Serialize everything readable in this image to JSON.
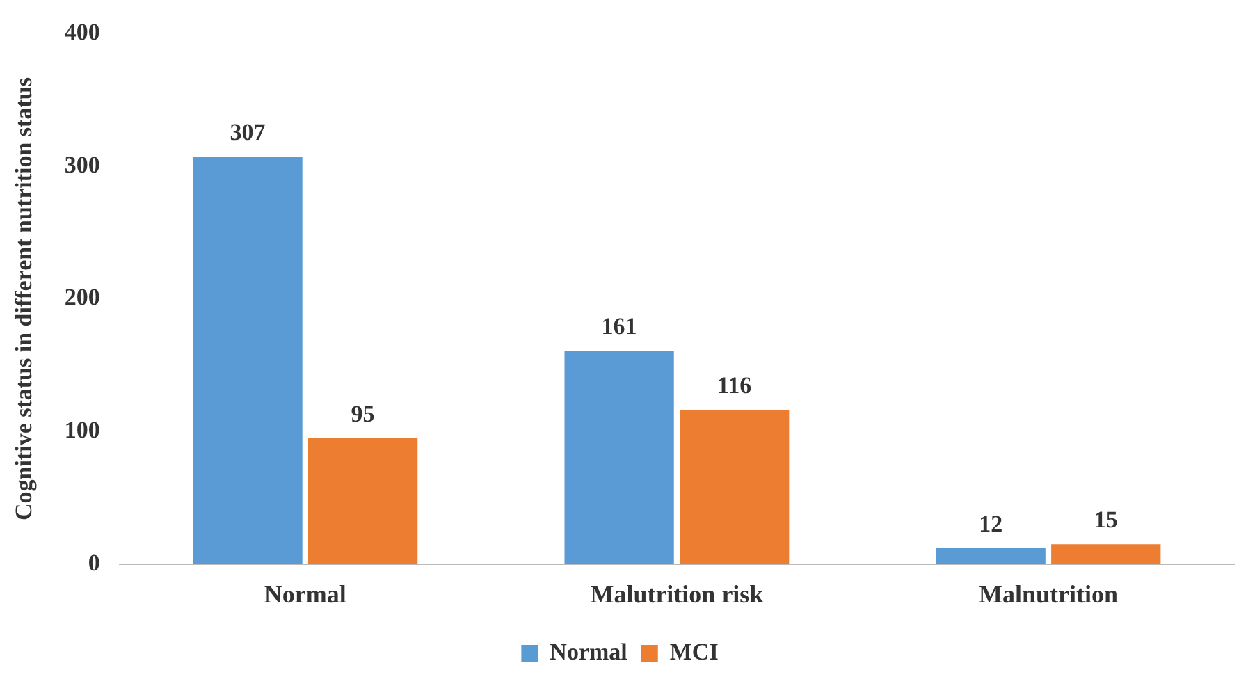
{
  "chart_data": {
    "type": "bar",
    "ylabel": "Cognitive status in different nutrition status",
    "categories": [
      "Normal",
      "Malutrition risk",
      "Malnutrition"
    ],
    "series": [
      {
        "name": "Normal",
        "color": "#5b9bd5",
        "values": [
          307,
          161,
          12
        ]
      },
      {
        "name": "MCI",
        "color": "#ed7d31",
        "values": [
          95,
          116,
          15
        ]
      }
    ],
    "ylim": [
      0,
      400
    ],
    "yticks": [
      0,
      100,
      200,
      300,
      400
    ],
    "grid": false,
    "legend": "bottom",
    "data_labels": true
  }
}
